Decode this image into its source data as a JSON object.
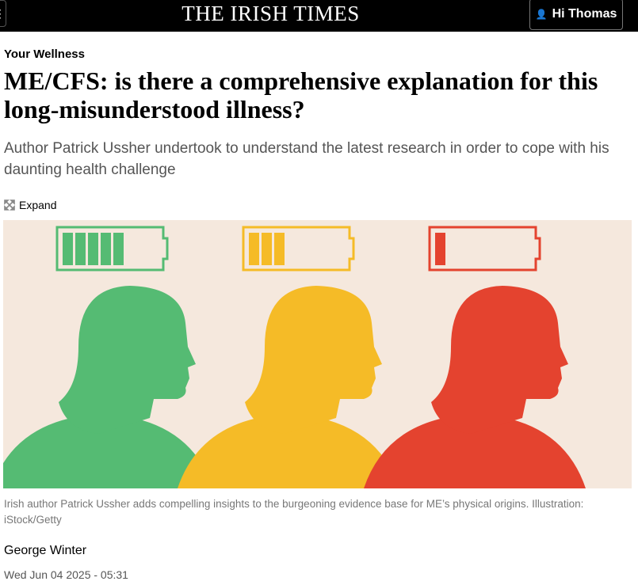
{
  "header": {
    "logo": "THE IRISH TIMES",
    "user_label": "Hi Thomas",
    "menu_icon": "menu-icon",
    "user_icon": "user-check-icon"
  },
  "article": {
    "kicker": "Your Wellness",
    "title": "ME/CFS: is there a comprehensive explanation for this long-misunderstood illness?",
    "standfirst": "Author Patrick Ussher undertook to understand the latest research in order to cope with his daunting health challenge",
    "expand_label": "Expand",
    "caption": "Irish author Patrick Ussher adds compelling insights to the burgeoning evidence base for ME’s physical origins. Illustration: iStock/Getty",
    "author": "George Winter",
    "date": "Wed Jun 04 2025 - 05:31"
  },
  "illustration": {
    "background": "#f5e8dd",
    "figures": [
      {
        "color": "#55bb73",
        "battery_level": 5
      },
      {
        "color": "#f5bb27",
        "battery_level": 3
      },
      {
        "color": "#e4432f",
        "battery_level": 1
      }
    ]
  }
}
